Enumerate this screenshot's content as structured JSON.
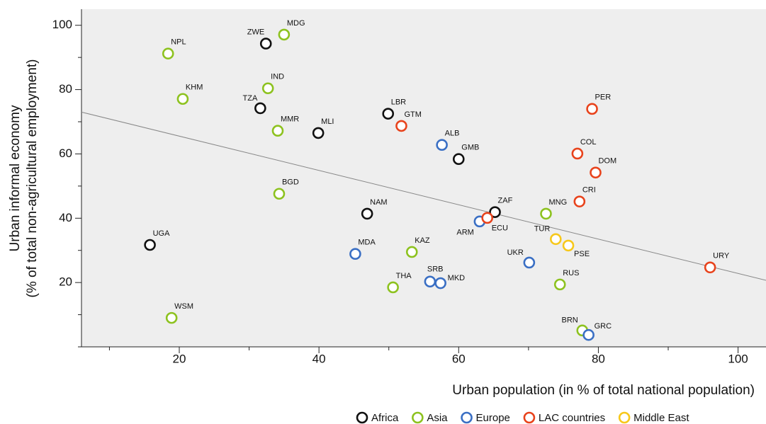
{
  "chart_data": {
    "type": "scatter",
    "xlabel": "Urban population (in % of total national population)",
    "ylabel": [
      "Urban informal economy",
      "(% of total non-agricultural employment)"
    ],
    "xlim": [
      6,
      104
    ],
    "ylim": [
      0,
      105
    ],
    "xticks": [
      20,
      40,
      60,
      80,
      100
    ],
    "yticks": [
      20,
      40,
      60,
      80,
      100
    ],
    "xminorticks": [
      10,
      30,
      50,
      70,
      90
    ],
    "yminorticks": [
      0,
      10,
      30,
      50,
      70,
      90
    ],
    "trendline": {
      "x": [
        6,
        104
      ],
      "y": [
        73,
        20.7
      ],
      "color": "#888888"
    },
    "series": [
      {
        "name": "Africa",
        "color": "#111111",
        "labels": [
          "ZWE",
          "TZA",
          "MLI",
          "LBR",
          "GMB",
          "NAM",
          "ZAF",
          "UGA"
        ],
        "x": [
          32.4,
          31.6,
          39.9,
          49.9,
          60.0,
          46.9,
          65.2,
          15.8
        ],
        "values": [
          94.3,
          74.2,
          66.5,
          72.5,
          58.4,
          41.4,
          41.9,
          31.7
        ]
      },
      {
        "name": "Asia",
        "color": "#8dc21f",
        "labels": [
          "MDG",
          "NPL",
          "KHM",
          "IND",
          "MMR",
          "BGD",
          "MNG",
          "KAZ",
          "THA",
          "RUS",
          "WSM",
          "BRN"
        ],
        "x": [
          35.0,
          18.4,
          20.5,
          32.7,
          34.1,
          34.3,
          72.5,
          53.3,
          50.6,
          74.5,
          18.9,
          77.7
        ],
        "values": [
          97.1,
          91.2,
          77.1,
          80.4,
          67.2,
          47.6,
          41.4,
          29.5,
          18.5,
          19.4,
          9.0,
          5.1
        ]
      },
      {
        "name": "Europe",
        "color": "#3a6fc4",
        "labels": [
          "ALB",
          "ARM",
          "MDA",
          "SRB",
          "MKD",
          "UKR",
          "GRC"
        ],
        "x": [
          57.6,
          63.0,
          45.2,
          55.9,
          57.4,
          70.1,
          78.6
        ],
        "values": [
          62.8,
          39.0,
          28.9,
          20.3,
          19.8,
          26.2,
          3.7
        ]
      },
      {
        "name": "LAC countries",
        "color": "#e8431c",
        "labels": [
          "PER",
          "GTM",
          "COL",
          "DOM",
          "CRI",
          "ECU",
          "URY"
        ],
        "x": [
          79.1,
          51.8,
          77.0,
          79.6,
          77.3,
          64.1,
          96.0
        ],
        "values": [
          74.0,
          68.7,
          60.1,
          54.2,
          45.2,
          40.1,
          24.7
        ]
      },
      {
        "name": "Middle East",
        "color": "#f7c81b",
        "labels": [
          "TUR",
          "PSE"
        ],
        "x": [
          73.9,
          75.7
        ],
        "values": [
          33.5,
          31.5
        ]
      }
    ]
  }
}
